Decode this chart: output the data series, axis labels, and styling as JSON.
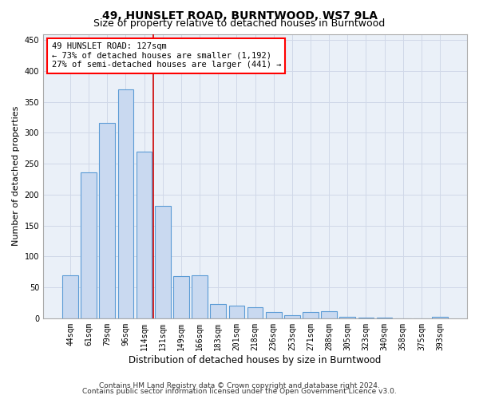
{
  "title": "49, HUNSLET ROAD, BURNTWOOD, WS7 9LA",
  "subtitle": "Size of property relative to detached houses in Burntwood",
  "xlabel": "Distribution of detached houses by size in Burntwood",
  "ylabel": "Number of detached properties",
  "categories": [
    "44sqm",
    "61sqm",
    "79sqm",
    "96sqm",
    "114sqm",
    "131sqm",
    "149sqm",
    "166sqm",
    "183sqm",
    "201sqm",
    "218sqm",
    "236sqm",
    "253sqm",
    "271sqm",
    "288sqm",
    "305sqm",
    "323sqm",
    "340sqm",
    "358sqm",
    "375sqm",
    "393sqm"
  ],
  "values": [
    70,
    236,
    316,
    370,
    270,
    182,
    68,
    70,
    23,
    20,
    18,
    10,
    5,
    10,
    12,
    2,
    1,
    1,
    0,
    0,
    3
  ],
  "bar_color": "#c9d9f0",
  "bar_edge_color": "#5b9bd5",
  "grid_color": "#d0d8e8",
  "background_color": "#eaf0f8",
  "annotation_line1": "49 HUNSLET ROAD: 127sqm",
  "annotation_line2": "← 73% of detached houses are smaller (1,192)",
  "annotation_line3": "27% of semi-detached houses are larger (441) →",
  "annotation_box_color": "#ff0000",
  "vline_x": 5.0,
  "vline_color": "#cc0000",
  "ylim": [
    0,
    460
  ],
  "yticks": [
    0,
    50,
    100,
    150,
    200,
    250,
    300,
    350,
    400,
    450
  ],
  "footer_line1": "Contains HM Land Registry data © Crown copyright and database right 2024.",
  "footer_line2": "Contains public sector information licensed under the Open Government Licence v3.0.",
  "title_fontsize": 10,
  "subtitle_fontsize": 9,
  "xlabel_fontsize": 8.5,
  "ylabel_fontsize": 8,
  "tick_fontsize": 7,
  "footer_fontsize": 6.5,
  "annot_fontsize": 7.5
}
